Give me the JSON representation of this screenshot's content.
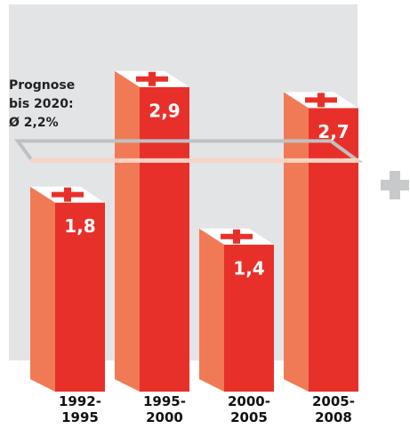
{
  "chart_data": {
    "type": "bar3d",
    "categories": [
      "1992-\n1995",
      "1995-\n2000",
      "2000-\n2005",
      "2005-\n2008"
    ],
    "values": [
      1.8,
      2.9,
      1.4,
      2.7
    ],
    "value_labels": [
      "1,8",
      "2,9",
      "1,4",
      "2,7"
    ],
    "color": "#e8302a",
    "reference_line": {
      "value": 2.2,
      "label": "Prognose\nbis 2020:\nØ 2,2%"
    }
  }
}
